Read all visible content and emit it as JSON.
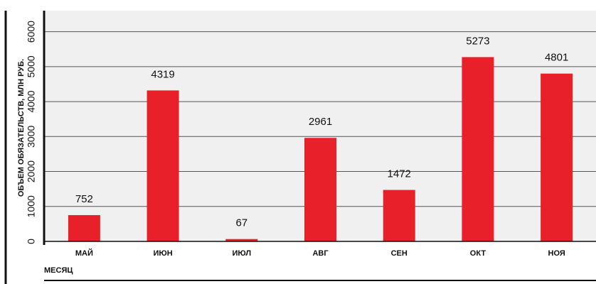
{
  "chart_data": {
    "type": "bar",
    "ylabel": "ОБЪЕМ ОБЯЗАТЕЛЬСТВ, МЛН РУБ.",
    "xlabel": "МЕСЯЦ",
    "categories": [
      "МАЙ",
      "ИЮН",
      "ИЮЛ",
      "АВГ",
      "СЕН",
      "ОКТ",
      "НОЯ"
    ],
    "values": [
      752,
      4319,
      67,
      2961,
      1472,
      5273,
      4801
    ],
    "color": "#e8202a",
    "ylim": [
      0,
      6500
    ],
    "yticks": [
      0,
      1000,
      2000,
      3000,
      4000,
      5000,
      6000
    ],
    "grid": true
  }
}
